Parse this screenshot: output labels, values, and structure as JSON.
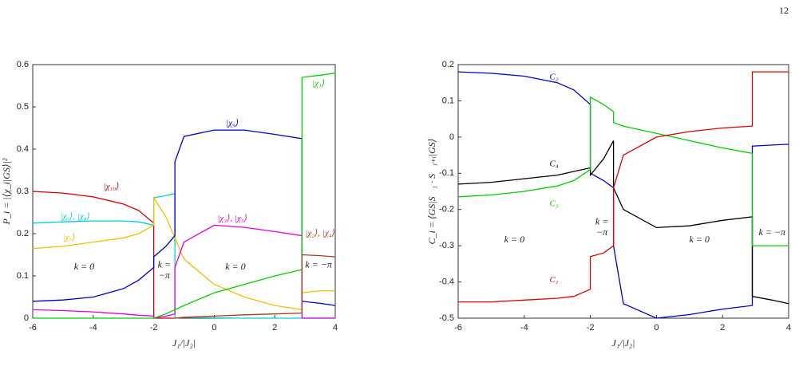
{
  "page": {
    "number": "12"
  },
  "chart_data": [
    {
      "type": "line",
      "y_label": "P_i = |⟨χ_i|GS⟩|²",
      "x_label": "J₁/|J₂|",
      "x": [
        -6,
        -5,
        -4,
        -3,
        -2.5,
        -2,
        -2,
        -1.6,
        -1.3,
        -1.3,
        -1,
        0,
        1,
        2,
        2.9,
        2.9,
        3.5,
        4
      ],
      "xlim": [
        -6,
        4
      ],
      "xticks": [
        -6,
        -4,
        -2,
        0,
        2,
        4
      ],
      "ylim": [
        0,
        0.6
      ],
      "yticks": [
        0,
        0.1,
        0.2,
        0.3,
        0.4,
        0.5,
        0.6
      ],
      "series": [
        {
          "name": "|χ₁₀⟩",
          "color": "#d00000",
          "values": [
            0.3,
            0.296,
            0.287,
            0.27,
            0.255,
            0.225,
            0,
            0,
            0,
            null,
            null,
            null,
            null,
            null,
            null,
            null,
            null,
            null
          ]
        },
        {
          "name": "|χ₆⟩, |χ₈⟩",
          "color": "#00d0d8",
          "values": [
            0.225,
            0.228,
            0.23,
            0.23,
            0.228,
            0.22,
            0.285,
            0.29,
            0.295,
            0,
            0.002,
            0.001,
            0,
            0,
            0,
            0,
            0,
            0
          ]
        },
        {
          "name": "|χ₇⟩",
          "color": "#f0c000",
          "values": [
            0.165,
            0.17,
            0.18,
            0.19,
            0.2,
            0.22,
            0.285,
            0.24,
            0.19,
            0.19,
            0.14,
            0.08,
            0.05,
            0.03,
            0.02,
            0.06,
            0.065,
            0.065
          ]
        },
        {
          "name": "|χ₉⟩",
          "color": "#0000c8",
          "values": [
            0.04,
            0.043,
            0.05,
            0.07,
            0.09,
            0.12,
            0.145,
            0.17,
            0.195,
            0.37,
            0.43,
            0.445,
            0.445,
            0.435,
            0.425,
            0.04,
            0.035,
            0.03
          ]
        },
        {
          "name": "|χ₃⟩, |χ₅⟩",
          "color": "#e000e0",
          "values": [
            0.02,
            0.018,
            0.015,
            0.01,
            0.007,
            0.005,
            0,
            0.005,
            0.01,
            0.12,
            0.18,
            0.22,
            0.215,
            0.205,
            0.195,
            0,
            0,
            0
          ]
        },
        {
          "name": "|χ₁⟩",
          "color": "#00d000",
          "values": [
            0,
            0,
            0,
            0,
            0,
            0,
            0,
            0.01,
            0.02,
            0.02,
            0.03,
            0.06,
            0.08,
            0.1,
            0.115,
            0.57,
            0.575,
            0.58
          ]
        },
        {
          "name": "|χ₂⟩, |χ₄⟩",
          "color": "#a0401a",
          "values": [
            null,
            null,
            null,
            null,
            null,
            null,
            null,
            null,
            null,
            0,
            0.002,
            0.005,
            0.008,
            0.01,
            0.012,
            0.15,
            0.148,
            0.145
          ]
        }
      ],
      "annotations": [
        "k = 0",
        "k =",
        "−π",
        "k = 0",
        "k = −π"
      ]
    },
    {
      "type": "line",
      "y_label": "C_i = ⟨GS|S⃗₁ · S⃗₁₊ᵢ|GS⟩",
      "x_label": "J₁/|J₂|",
      "x": [
        -6,
        -5,
        -4,
        -3,
        -2.5,
        -2,
        -2,
        -1.6,
        -1.3,
        -1.3,
        -1,
        0,
        1,
        2,
        2.9,
        2.9,
        3.5,
        4
      ],
      "xlim": [
        -6,
        4
      ],
      "xticks": [
        -6,
        -4,
        -2,
        0,
        2,
        4
      ],
      "ylim": [
        -0.5,
        0.2
      ],
      "yticks": [
        -0.5,
        -0.4,
        -0.3,
        -0.2,
        -0.1,
        0,
        0.1,
        0.2
      ],
      "series": [
        {
          "name": "C₂",
          "color": "#0000c8",
          "values": [
            0.18,
            0.176,
            0.168,
            0.15,
            0.13,
            0.09,
            -0.1,
            -0.12,
            -0.14,
            -0.3,
            -0.46,
            -0.5,
            -0.49,
            -0.475,
            -0.465,
            -0.025,
            -0.022,
            -0.02
          ]
        },
        {
          "name": "C₄",
          "color": "#000000",
          "values": [
            -0.13,
            -0.125,
            -0.115,
            -0.105,
            -0.095,
            -0.085,
            -0.105,
            -0.06,
            -0.01,
            -0.14,
            -0.2,
            -0.25,
            -0.245,
            -0.23,
            -0.22,
            -0.44,
            -0.45,
            -0.46
          ]
        },
        {
          "name": "C₃",
          "color": "#00d000",
          "values": [
            -0.165,
            -0.16,
            -0.15,
            -0.135,
            -0.12,
            -0.09,
            0.11,
            0.09,
            0.07,
            0.04,
            0.03,
            0.01,
            -0.01,
            -0.03,
            -0.045,
            -0.3,
            -0.3,
            -0.3
          ]
        },
        {
          "name": "C₁",
          "color": "#e00000",
          "values": [
            -0.455,
            -0.455,
            -0.45,
            -0.445,
            -0.44,
            -0.42,
            -0.33,
            -0.32,
            -0.3,
            -0.14,
            -0.05,
            0,
            0.015,
            0.025,
            0.03,
            0.18,
            0.18,
            0.18
          ]
        }
      ],
      "annotations": [
        "k = 0",
        "k =",
        "−π",
        "k = 0",
        "k = −π"
      ]
    }
  ]
}
